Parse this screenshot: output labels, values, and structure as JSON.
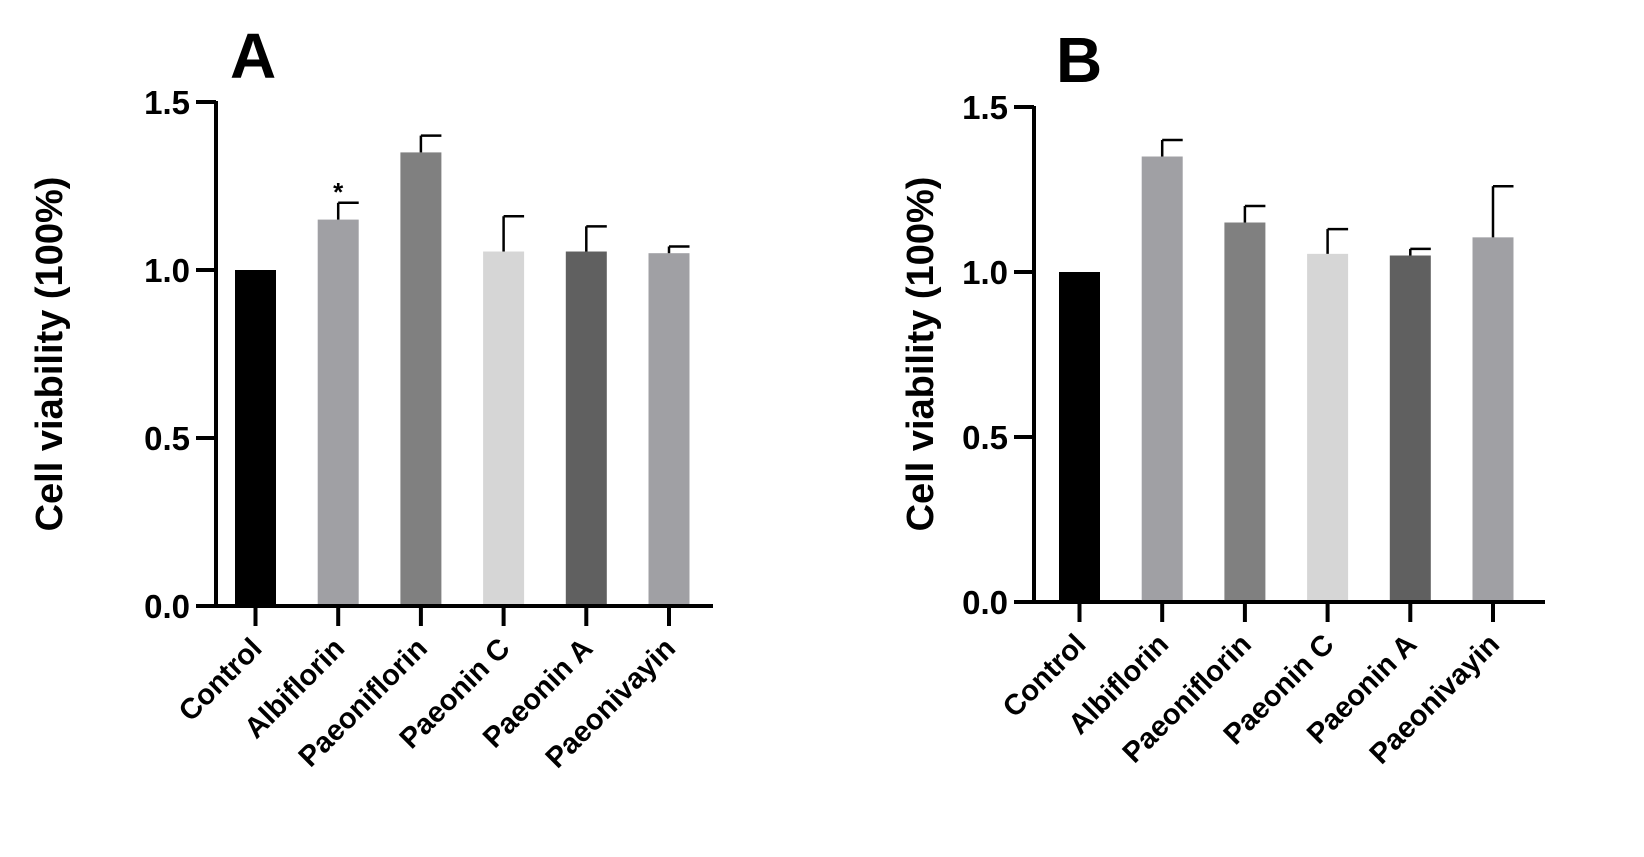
{
  "chart_data": [
    {
      "panel_label": "A",
      "type": "bar",
      "ylabel": "Cell viability (100%)",
      "xlabel": "",
      "ylim": [
        0,
        1.5
      ],
      "yticks": [
        "0.0",
        "0.5",
        "1.0",
        "1.5"
      ],
      "categories": [
        "Control",
        "Albiflorin",
        "Paeoniflorin",
        "Paeonin C",
        "Paeonin A",
        "Paeonivayin"
      ],
      "values": [
        1.0,
        1.15,
        1.35,
        1.055,
        1.055,
        1.05
      ],
      "errors": [
        0,
        0.05,
        0.05,
        0.105,
        0.075,
        0.02
      ],
      "colors": [
        "#000000",
        "#a0a0a4",
        "#808080",
        "#d6d6d6",
        "#606060",
        "#a0a0a4"
      ],
      "annotations": [
        "",
        "*",
        "",
        "",
        "",
        ""
      ]
    },
    {
      "panel_label": "B",
      "type": "bar",
      "ylabel": "Cell viability (100%)",
      "xlabel": "",
      "ylim": [
        0,
        1.5
      ],
      "yticks": [
        "0.0",
        "0.5",
        "1.0",
        "1.5"
      ],
      "categories": [
        "Control",
        "Albiflorin",
        "Paeoniflorin",
        "Paeonin C",
        "Paeonin A",
        "Paeonivayin"
      ],
      "values": [
        1.0,
        1.35,
        1.15,
        1.055,
        1.05,
        1.105
      ],
      "errors": [
        0,
        0.05,
        0.05,
        0.075,
        0.02,
        0.155
      ],
      "colors": [
        "#000000",
        "#a0a0a4",
        "#808080",
        "#d6d6d6",
        "#606060",
        "#a0a0a4"
      ],
      "annotations": [
        "",
        "",
        "",
        "",
        "",
        ""
      ]
    }
  ]
}
